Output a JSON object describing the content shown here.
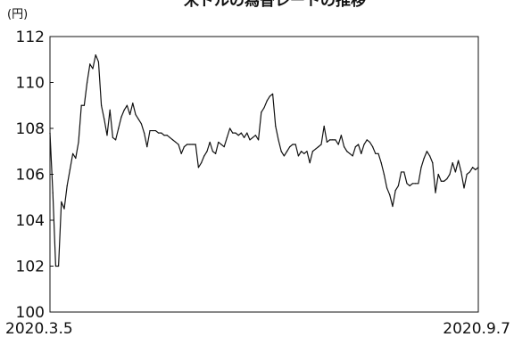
{
  "chart_data": {
    "type": "line",
    "title": "米ドルの為替レートの推移",
    "unit_label": "(円)",
    "x_start_label": "2020.3.5",
    "x_end_label": "2020.9.7",
    "ylim": [
      100,
      112
    ],
    "y_ticks": [
      100,
      102,
      104,
      106,
      108,
      110,
      112
    ],
    "grid": false,
    "series": [
      {
        "values": [
          107.8,
          105.2,
          102.0,
          102.0,
          104.8,
          104.5,
          105.5,
          106.2,
          106.9,
          106.7,
          107.4,
          109.0,
          109.0,
          110.0,
          110.8,
          110.6,
          111.2,
          110.9,
          109.0,
          108.4,
          107.7,
          108.8,
          107.6,
          107.5,
          108.0,
          108.5,
          108.8,
          109.0,
          108.6,
          109.1,
          108.6,
          108.4,
          108.2,
          107.8,
          107.2,
          107.9,
          107.9,
          107.9,
          107.8,
          107.8,
          107.7,
          107.7,
          107.6,
          107.5,
          107.4,
          107.3,
          106.9,
          107.2,
          107.3,
          107.3,
          107.3,
          107.3,
          106.3,
          106.5,
          106.8,
          107.0,
          107.4,
          107.0,
          106.9,
          107.4,
          107.3,
          107.2,
          107.6,
          108.0,
          107.8,
          107.8,
          107.7,
          107.8,
          107.6,
          107.8,
          107.5,
          107.6,
          107.7,
          107.5,
          108.7,
          108.9,
          109.2,
          109.4,
          109.5,
          108.1,
          107.5,
          107.0,
          106.8,
          107.0,
          107.2,
          107.3,
          107.3,
          106.8,
          107.0,
          106.9,
          107.0,
          106.5,
          107.0,
          107.1,
          107.2,
          107.3,
          108.1,
          107.4,
          107.5,
          107.5,
          107.5,
          107.3,
          107.7,
          107.2,
          107.0,
          106.9,
          106.8,
          107.2,
          107.3,
          106.9,
          107.3,
          107.5,
          107.4,
          107.2,
          106.9,
          106.9,
          106.5,
          106.0,
          105.4,
          105.1,
          104.6,
          105.3,
          105.5,
          106.1,
          106.1,
          105.6,
          105.5,
          105.6,
          105.6,
          105.6,
          106.3,
          106.7,
          107.0,
          106.8,
          106.5,
          105.2,
          106.0,
          105.7,
          105.7,
          105.8,
          106.0,
          106.5,
          106.1,
          106.6,
          106.1,
          105.4,
          106.0,
          106.1,
          106.3,
          106.2,
          106.3
        ]
      }
    ]
  }
}
